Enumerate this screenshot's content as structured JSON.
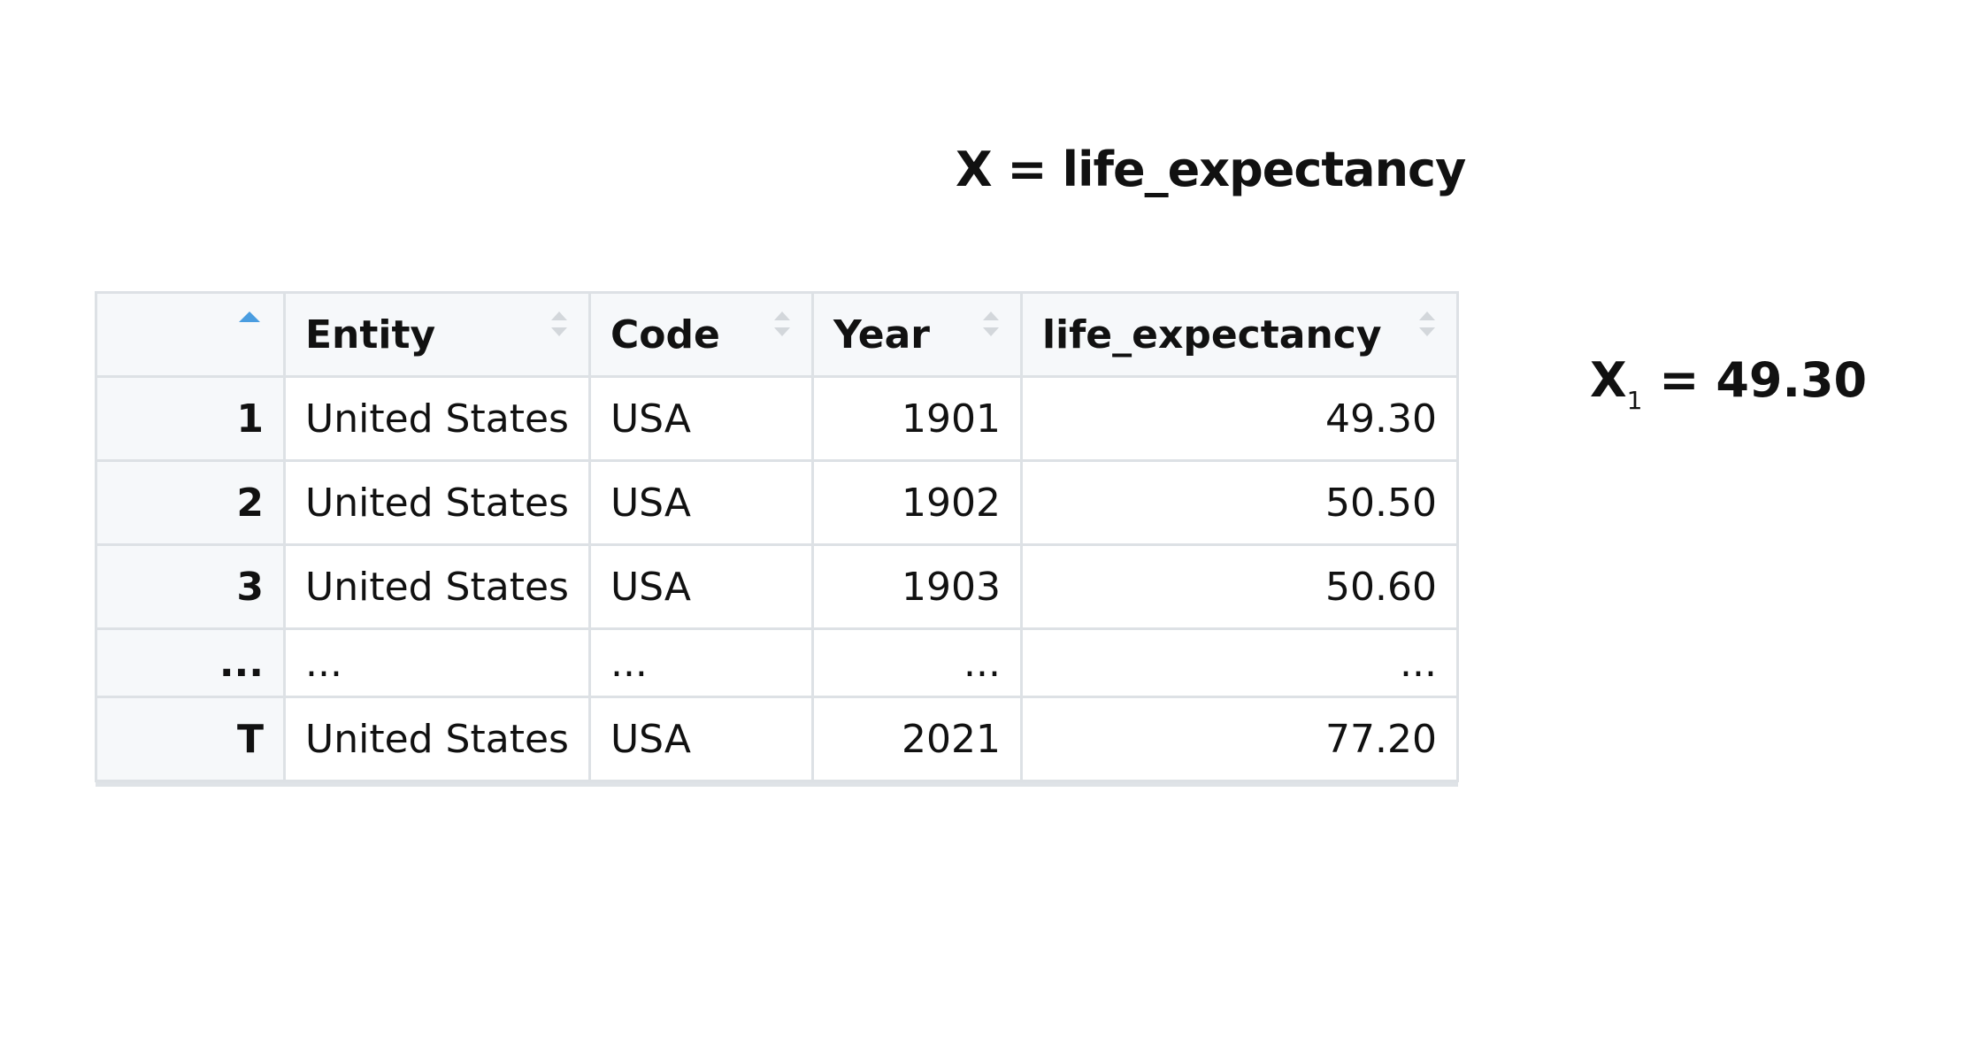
{
  "title": "X = life_expectancy",
  "table": {
    "columns": [
      "Entity",
      "Code",
      "Year",
      "life_expectancy"
    ],
    "rows": [
      [
        "1",
        "United States",
        "USA",
        "1901",
        "49.30"
      ],
      [
        "2",
        "United States",
        "USA",
        "1902",
        "50.50"
      ],
      [
        "3",
        "United States",
        "USA",
        "1903",
        "50.60"
      ],
      [
        "...",
        "...",
        "...",
        "...",
        "..."
      ],
      [
        "T",
        "United States",
        "USA",
        "2021",
        "77.20"
      ]
    ]
  },
  "annotation": {
    "symbol": "X",
    "subscript": "1",
    "value_text": "= 49.30"
  }
}
